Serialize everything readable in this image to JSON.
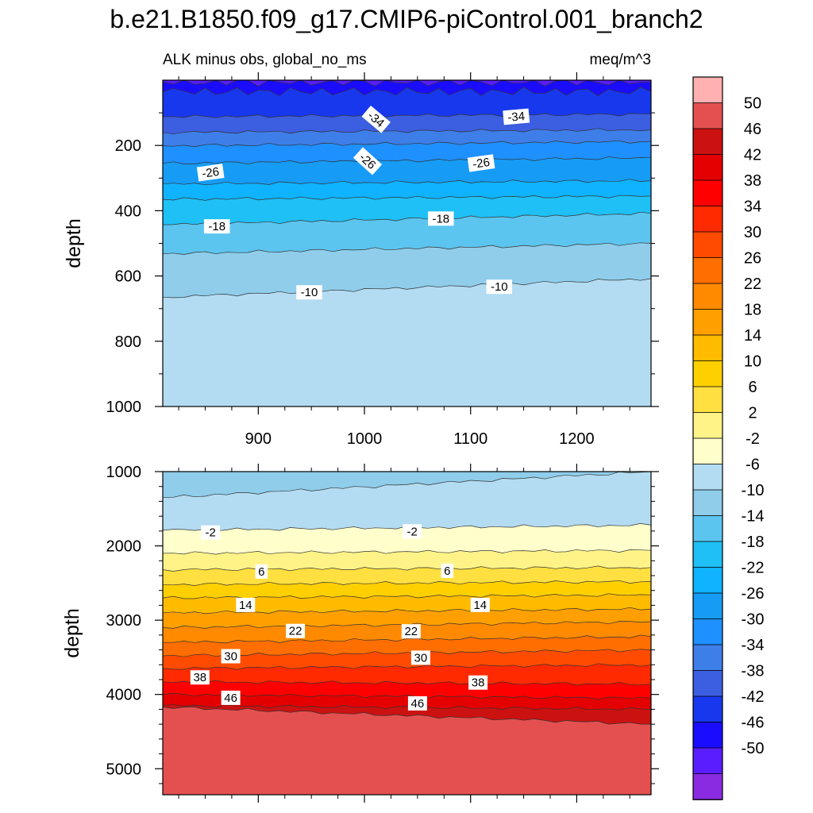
{
  "title": "b.e21.B1850.f09_g17.CMIP6-piControl.001_branch2",
  "colors": {
    "scale": [
      "#8a2be2",
      "#5a1dff",
      "#1a0dff",
      "#1838ee",
      "#3c5ee0",
      "#3e7ee8",
      "#1e90ff",
      "#169cf4",
      "#0fb3ff",
      "#1fc0f5",
      "#5cc5ef",
      "#8fcdeb",
      "#b3dcf2",
      "#ffffcc",
      "#fff388",
      "#ffe040",
      "#ffd000",
      "#ffbb00",
      "#ffa000",
      "#ff8a00",
      "#ff6e00",
      "#ff4b00",
      "#ff2a00",
      "#ff0000",
      "#e40000",
      "#cc1111",
      "#e45050",
      "#ffb0b0"
    ],
    "line": "#333333",
    "axis": "#000000"
  },
  "chart_data": [
    {
      "type": "contour",
      "name": "upper",
      "subtitle_left": "ALK minus obs, global_no_ms",
      "subtitle_right": "meq/m^3",
      "ylabel": "depth",
      "xlim": [
        810,
        1270
      ],
      "ylim": [
        1000,
        0
      ],
      "xticks": [
        900,
        1000,
        1100,
        1200
      ],
      "yticks": [
        200,
        400,
        600,
        800,
        1000
      ],
      "xminor": [
        825,
        850,
        875,
        925,
        950,
        975,
        1025,
        1050,
        1075,
        1125,
        1150,
        1175,
        1225,
        1250
      ],
      "yminor": [
        100,
        300,
        500,
        700,
        900
      ],
      "contour_levels": [
        -46,
        -42,
        -38,
        -34,
        -30,
        -26,
        -22,
        -18,
        -14,
        -10
      ],
      "boundaries_depth_at_xlim": [
        [
          5,
          5
        ],
        [
          35,
          35
        ],
        [
          112,
          104
        ],
        [
          160,
          152
        ],
        [
          201,
          188
        ],
        [
          255,
          238
        ],
        [
          318,
          308
        ],
        [
          365,
          355
        ],
        [
          443,
          408
        ],
        [
          532,
          500
        ],
        [
          665,
          608
        ]
      ],
      "labels": [
        {
          "text": "-34",
          "x": 1011,
          "y": 120,
          "rot": 40
        },
        {
          "text": "-34",
          "x": 1143,
          "y": 112,
          "rot": -5
        },
        {
          "text": "-26",
          "x": 855,
          "y": 283,
          "rot": -8
        },
        {
          "text": "-26",
          "x": 1003,
          "y": 248,
          "rot": 42
        },
        {
          "text": "-26",
          "x": 1110,
          "y": 254,
          "rot": -8
        },
        {
          "text": "-18",
          "x": 861,
          "y": 448,
          "rot": 0
        },
        {
          "text": "-18",
          "x": 1072,
          "y": 424,
          "rot": 0
        },
        {
          "text": "-10",
          "x": 948,
          "y": 650,
          "rot": 0
        },
        {
          "text": "-10",
          "x": 1127,
          "y": 633,
          "rot": 0
        }
      ]
    },
    {
      "type": "contour",
      "name": "lower",
      "ylabel": "depth",
      "xlim": [
        810,
        1270
      ],
      "ylim": [
        5350,
        1000
      ],
      "yticks": [
        1000,
        2000,
        3000,
        4000,
        5000
      ],
      "yminor": [
        1200,
        1400,
        1600,
        1800,
        2200,
        2400,
        2600,
        2800,
        3200,
        3400,
        3600,
        3800,
        4200,
        4400,
        4600,
        4800,
        5200
      ],
      "contour_levels": [
        -6,
        -2,
        2,
        6,
        10,
        14,
        18,
        22,
        26,
        30,
        34,
        38,
        42,
        46
      ],
      "boundaries_depth_at_xlim": [
        [
          1350,
          1000
        ],
        [
          1790,
          1720
        ],
        [
          2100,
          2060
        ],
        [
          2320,
          2290
        ],
        [
          2520,
          2480
        ],
        [
          2700,
          2660
        ],
        [
          2900,
          2850
        ],
        [
          3100,
          3020
        ],
        [
          3300,
          3220
        ],
        [
          3480,
          3400
        ],
        [
          3650,
          3600
        ],
        [
          3830,
          3860
        ],
        [
          4000,
          4050
        ],
        [
          4150,
          4200
        ],
        [
          4170,
          4400
        ]
      ],
      "labels": [
        {
          "text": "-2",
          "x": 855,
          "y": 1820,
          "rot": 0
        },
        {
          "text": "-2",
          "x": 1045,
          "y": 1805,
          "rot": 0
        },
        {
          "text": "6",
          "x": 903,
          "y": 2345,
          "rot": 0
        },
        {
          "text": "6",
          "x": 1078,
          "y": 2335,
          "rot": 0
        },
        {
          "text": "14",
          "x": 888,
          "y": 2795,
          "rot": 0
        },
        {
          "text": "14",
          "x": 1109,
          "y": 2795,
          "rot": 0
        },
        {
          "text": "22",
          "x": 935,
          "y": 3145,
          "rot": 0
        },
        {
          "text": "22",
          "x": 1044,
          "y": 3150,
          "rot": 0
        },
        {
          "text": "30",
          "x": 874,
          "y": 3485,
          "rot": 0
        },
        {
          "text": "30",
          "x": 1053,
          "y": 3505,
          "rot": 0
        },
        {
          "text": "38",
          "x": 845,
          "y": 3770,
          "rot": 0
        },
        {
          "text": "38",
          "x": 1107,
          "y": 3840,
          "rot": 0
        },
        {
          "text": "46",
          "x": 874,
          "y": 4045,
          "rot": 0
        },
        {
          "text": "46",
          "x": 1050,
          "y": 4120,
          "rot": 0
        }
      ]
    }
  ],
  "colorbar": {
    "labels": [
      "50",
      "46",
      "42",
      "38",
      "34",
      "30",
      "26",
      "22",
      "18",
      "14",
      "10",
      "6",
      "2",
      "-2",
      "-6",
      "-10",
      "-14",
      "-18",
      "-22",
      "-26",
      "-30",
      "-34",
      "-38",
      "-42",
      "-46",
      "-50"
    ]
  }
}
